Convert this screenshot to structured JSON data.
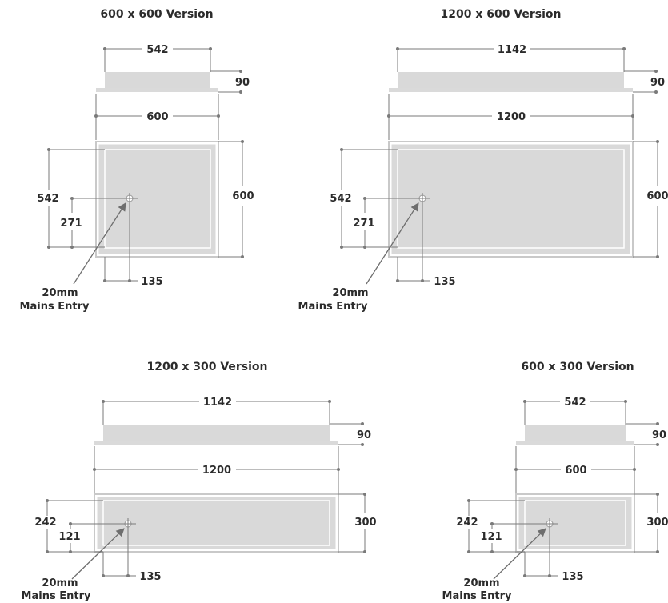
{
  "diagrams": [
    {
      "title": "600 x 600 Version",
      "top_width": "542",
      "depth": "90",
      "panel_width": "600",
      "panel_height": "600",
      "inner_height": "542",
      "entry_y": "271",
      "entry_x": "135",
      "entry_label_1": "20mm",
      "entry_label_2": "Mains Entry"
    },
    {
      "title": "1200 x 600 Version",
      "top_width": "1142",
      "depth": "90",
      "panel_width": "1200",
      "panel_height": "600",
      "inner_height": "542",
      "entry_y": "271",
      "entry_x": "135",
      "entry_label_1": "20mm",
      "entry_label_2": "Mains Entry"
    },
    {
      "title": "1200 x 300 Version",
      "top_width": "1142",
      "depth": "90",
      "panel_width": "1200",
      "panel_height": "300",
      "inner_height": "242",
      "entry_y": "121",
      "entry_x": "135",
      "entry_label_1": "20mm",
      "entry_label_2": "Mains Entry"
    },
    {
      "title": "600 x 300 Version",
      "top_width": "542",
      "depth": "90",
      "panel_width": "600",
      "panel_height": "300",
      "inner_height": "242",
      "entry_y": "121",
      "entry_x": "135",
      "entry_label_1": "20mm",
      "entry_label_2": "Mains Entry"
    }
  ]
}
